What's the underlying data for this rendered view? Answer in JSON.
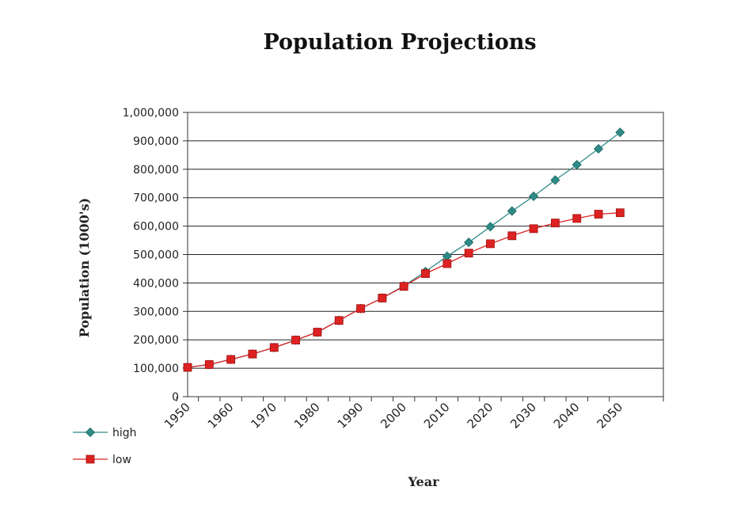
{
  "chart_data": {
    "type": "line",
    "title": "Population Projections",
    "xlabel": "Year",
    "ylabel": "Population (1000's)",
    "xlim": [
      1950,
      2060
    ],
    "ylim": [
      0,
      1000000
    ],
    "x_ticks": [
      "1950",
      "1960",
      "1970",
      "1980",
      "1990",
      "2000",
      "2010",
      "2020",
      "2030",
      "2040",
      "2050"
    ],
    "y_ticks": [
      "0",
      "100,000",
      "200,000",
      "300,000",
      "400,000",
      "500,000",
      "600,000",
      "700,000",
      "800,000",
      "900,000",
      "1,000,000"
    ],
    "x": [
      1950,
      1955,
      1960,
      1965,
      1970,
      1975,
      1980,
      1985,
      1990,
      1995,
      2000,
      2005,
      2010,
      2015,
      2020,
      2025,
      2030,
      2035,
      2040,
      2045,
      2050
    ],
    "grid": true,
    "legend_position": "bottom-left",
    "series": [
      {
        "name": "high",
        "color": "#2e8b87",
        "marker": "diamond",
        "values": [
          103000,
          113000,
          131000,
          150000,
          173000,
          199000,
          227000,
          268000,
          310000,
          347000,
          390000,
          440000,
          494000,
          543000,
          598000,
          653000,
          705000,
          762000,
          816000,
          872000,
          930000
        ]
      },
      {
        "name": "low",
        "color": "#dd2222",
        "marker": "square",
        "values": [
          103000,
          113000,
          131000,
          150000,
          173000,
          199000,
          227000,
          268000,
          310000,
          347000,
          388000,
          433000,
          468000,
          505000,
          538000,
          566000,
          591000,
          611000,
          627000,
          642000,
          647000
        ]
      }
    ]
  }
}
